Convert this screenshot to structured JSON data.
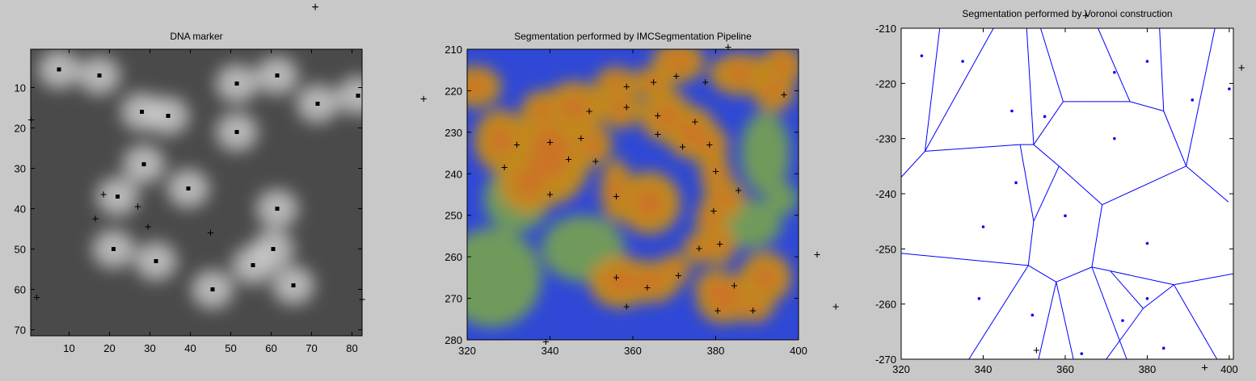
{
  "figure": {
    "background": "#c8c8c8",
    "stray_marker_glyph": "+"
  },
  "chart_data": [
    {
      "type": "heatmap",
      "title": "DNA marker",
      "xlabel": "",
      "ylabel": "",
      "xlim": [
        0.5,
        82.5
      ],
      "ylim": [
        0.5,
        71.5
      ],
      "y_reversed": true,
      "grid": false,
      "x_ticks": [
        10,
        20,
        30,
        40,
        50,
        60,
        70,
        80
      ],
      "y_ticks": [
        10,
        20,
        30,
        40,
        50,
        60,
        70
      ],
      "colormap": "gray",
      "background_color": "#4a4a4a",
      "blob_color": "#d2d2d2",
      "nuclei_centers": [
        [
          7.5,
          5.5
        ],
        [
          17.5,
          7
        ],
        [
          28,
          16
        ],
        [
          34.5,
          17
        ],
        [
          51.5,
          9
        ],
        [
          61.5,
          7
        ],
        [
          71.5,
          14
        ],
        [
          51.5,
          21
        ],
        [
          28.5,
          29
        ],
        [
          22,
          37
        ],
        [
          39.5,
          35
        ],
        [
          61.5,
          40
        ],
        [
          21,
          50
        ],
        [
          31.5,
          53
        ],
        [
          45.5,
          60
        ],
        [
          55.5,
          54
        ],
        [
          60.5,
          50
        ],
        [
          65.5,
          59
        ],
        [
          81.5,
          12
        ]
      ],
      "cross_markers": [
        [
          18.5,
          36.5
        ],
        [
          16.5,
          42.5
        ],
        [
          27,
          39.5
        ],
        [
          29.5,
          44.5
        ],
        [
          45,
          46
        ],
        [
          2,
          62
        ],
        [
          0.6,
          18
        ],
        [
          82.5,
          62.5
        ]
      ]
    },
    {
      "type": "heatmap",
      "title": "Segmentation performed by IMCSegmentation Pipeline",
      "xlabel": "",
      "ylabel": "",
      "xlim": [
        320,
        400
      ],
      "ylim": [
        210,
        280
      ],
      "y_reversed": true,
      "grid": false,
      "x_ticks": [
        320,
        340,
        360,
        380,
        400
      ],
      "y_ticks": [
        210,
        220,
        230,
        240,
        250,
        260,
        270,
        280
      ],
      "colors": {
        "background": "#2f48d6",
        "cell": "#c08a1c",
        "cell_core": "#d26a2a",
        "stroma": "#6f9a5c"
      },
      "cell_regions": [
        [
          328,
          232,
          5,
          6
        ],
        [
          340,
          235,
          8,
          10
        ],
        [
          335,
          242,
          6,
          6
        ],
        [
          338,
          225,
          4,
          4
        ],
        [
          346,
          224,
          6,
          5
        ],
        [
          350,
          233,
          4,
          4
        ],
        [
          356,
          218,
          4,
          3
        ],
        [
          357,
          224,
          4,
          4
        ],
        [
          365,
          218,
          4,
          3
        ],
        [
          368,
          226,
          5,
          5
        ],
        [
          374,
          230,
          5,
          5
        ],
        [
          378,
          233,
          4,
          4
        ],
        [
          380,
          240,
          3,
          4
        ],
        [
          382,
          246,
          4,
          4
        ],
        [
          379,
          251,
          3,
          4
        ],
        [
          381,
          257,
          3,
          4
        ],
        [
          376,
          258,
          3,
          3
        ],
        [
          370,
          263,
          3,
          3
        ],
        [
          364,
          266,
          6,
          4
        ],
        [
          357,
          266,
          6,
          5
        ],
        [
          384,
          268,
          4,
          3
        ],
        [
          382,
          271,
          5,
          4
        ],
        [
          389,
          272,
          4,
          3
        ],
        [
          392,
          265,
          5,
          5
        ],
        [
          394,
          220,
          4,
          4
        ],
        [
          386,
          216,
          6,
          4
        ],
        [
          396,
          214,
          4,
          4
        ],
        [
          371,
          213,
          5,
          4
        ],
        [
          356,
          244,
          3,
          6
        ],
        [
          364,
          247,
          6,
          6
        ],
        [
          322,
          219,
          5,
          4
        ],
        [
          380,
          268,
          4,
          4
        ]
      ],
      "stroma_regions": [
        [
          326,
          265,
          12,
          12
        ],
        [
          348,
          258,
          10,
          8
        ],
        [
          332,
          246,
          8,
          8
        ],
        [
          392,
          235,
          6,
          10
        ],
        [
          388,
          252,
          8,
          6
        ],
        [
          396,
          246,
          4,
          4
        ]
      ],
      "cross_markers": [
        [
          329,
          238.5
        ],
        [
          332,
          233
        ],
        [
          340,
          232.5
        ],
        [
          340,
          245
        ],
        [
          344.5,
          236.5
        ],
        [
          347.5,
          231.5
        ],
        [
          349.5,
          225
        ],
        [
          351,
          237
        ],
        [
          356,
          245.5
        ],
        [
          358.5,
          219
        ],
        [
          358.5,
          224
        ],
        [
          365,
          218
        ],
        [
          366,
          226
        ],
        [
          366,
          230.5
        ],
        [
          370.5,
          216.5
        ],
        [
          372,
          233.5
        ],
        [
          375,
          227.5
        ],
        [
          377.5,
          218
        ],
        [
          378.5,
          233
        ],
        [
          380,
          239.5
        ],
        [
          379.5,
          249
        ],
        [
          381,
          257
        ],
        [
          376,
          258
        ],
        [
          385.5,
          244
        ],
        [
          396.5,
          221
        ],
        [
          356,
          265
        ],
        [
          358.5,
          272
        ],
        [
          363.5,
          267.5
        ],
        [
          371,
          264.5
        ],
        [
          384.5,
          267
        ],
        [
          380.5,
          273
        ],
        [
          389,
          273
        ],
        [
          339,
          280.5
        ],
        [
          383,
          209.5
        ],
        [
          309.5,
          222
        ],
        [
          404.5,
          259.5
        ],
        [
          409,
          272
        ]
      ]
    },
    {
      "type": "scatter",
      "title": "Segmentation performed by Voronoi construction",
      "xlabel": "",
      "ylabel": "",
      "xlim": [
        320,
        401
      ],
      "ylim": [
        -270,
        -210
      ],
      "grid": false,
      "x_ticks": [
        320,
        340,
        360,
        380,
        400
      ],
      "y_ticks": [
        -210,
        -220,
        -230,
        -240,
        -250,
        -260,
        -270
      ],
      "colors": {
        "edges": "#0000ff",
        "points": "#0000ff",
        "background": "#ffffff"
      },
      "points": [
        [
          325,
          -215
        ],
        [
          335,
          -216
        ],
        [
          347,
          -225
        ],
        [
          355,
          -226
        ],
        [
          372,
          -218
        ],
        [
          380,
          -216
        ],
        [
          391,
          -223
        ],
        [
          400,
          -221
        ],
        [
          372,
          -230
        ],
        [
          348,
          -238
        ],
        [
          360,
          -244
        ],
        [
          340,
          -246
        ],
        [
          380,
          -249
        ],
        [
          339,
          -259
        ],
        [
          352,
          -262
        ],
        [
          380,
          -259
        ],
        [
          374,
          -263
        ],
        [
          364,
          -269
        ],
        [
          384,
          -268
        ]
      ],
      "voronoi_edges": [
        [
          [
            329.4,
            -210
          ],
          [
            325.8,
            -232.3
          ]
        ],
        [
          [
            342.5,
            -210
          ],
          [
            325.8,
            -232.3
          ]
        ],
        [
          [
            325.8,
            -232.3
          ],
          [
            320,
            -237
          ]
        ],
        [
          [
            325.8,
            -232.3
          ],
          [
            349,
            -231.1
          ]
        ],
        [
          [
            350.6,
            -210
          ],
          [
            352.3,
            -231.1
          ]
        ],
        [
          [
            352.3,
            -231.1
          ],
          [
            349,
            -231.1
          ]
        ],
        [
          [
            352.3,
            -231.1
          ],
          [
            358.5,
            -235
          ]
        ],
        [
          [
            352.3,
            -231.1
          ],
          [
            359.5,
            -223.3
          ]
        ],
        [
          [
            359.5,
            -223.3
          ],
          [
            354,
            -210
          ]
        ],
        [
          [
            359.5,
            -223.3
          ],
          [
            364,
            -223.3
          ]
        ],
        [
          [
            364,
            -223.3
          ],
          [
            375.8,
            -223.3
          ]
        ],
        [
          [
            375.8,
            -223.3
          ],
          [
            368,
            -210
          ]
        ],
        [
          [
            375.8,
            -223.3
          ],
          [
            384,
            -225
          ]
        ],
        [
          [
            384,
            -225
          ],
          [
            383,
            -210
          ]
        ],
        [
          [
            384,
            -225
          ],
          [
            389.5,
            -235
          ]
        ],
        [
          [
            389.5,
            -235
          ],
          [
            396.5,
            -210
          ]
        ],
        [
          [
            389.5,
            -235
          ],
          [
            399.8,
            -241.5
          ]
        ],
        [
          [
            389.5,
            -235
          ],
          [
            369,
            -242
          ]
        ],
        [
          [
            369,
            -242
          ],
          [
            358.5,
            -235
          ]
        ],
        [
          [
            358.5,
            -235
          ],
          [
            352.3,
            -245
          ]
        ],
        [
          [
            352.3,
            -245
          ],
          [
            349,
            -231.1
          ]
        ],
        [
          [
            352.3,
            -245
          ],
          [
            351,
            -253
          ]
        ],
        [
          [
            351,
            -253
          ],
          [
            320,
            -250.8
          ]
        ],
        [
          [
            351,
            -253
          ],
          [
            357.8,
            -256
          ]
        ],
        [
          [
            357.8,
            -256
          ],
          [
            366.5,
            -253.3
          ]
        ],
        [
          [
            366.5,
            -253.3
          ],
          [
            369,
            -242
          ]
        ],
        [
          [
            366.5,
            -253.3
          ],
          [
            371,
            -254
          ]
        ],
        [
          [
            371,
            -254
          ],
          [
            386.5,
            -256.5
          ]
        ],
        [
          [
            386.5,
            -256.5
          ],
          [
            401,
            -254.5
          ]
        ],
        [
          [
            386.5,
            -256.5
          ],
          [
            397,
            -270
          ]
        ],
        [
          [
            371,
            -254
          ],
          [
            379,
            -260.8
          ]
        ],
        [
          [
            379,
            -260.8
          ],
          [
            386.5,
            -256.5
          ]
        ],
        [
          [
            379,
            -260.8
          ],
          [
            370,
            -270
          ]
        ],
        [
          [
            357.8,
            -256
          ],
          [
            353.5,
            -270
          ]
        ],
        [
          [
            357.8,
            -256
          ],
          [
            362,
            -270
          ]
        ],
        [
          [
            351,
            -253
          ],
          [
            336.5,
            -270
          ]
        ],
        [
          [
            366.5,
            -253.3
          ],
          [
            375,
            -270
          ]
        ]
      ],
      "stray_markers": [
        [
          365,
          -207.7
        ],
        [
          403,
          -217.2
        ],
        [
          353,
          -268.4
        ],
        [
          394,
          -271.5
        ]
      ]
    }
  ]
}
